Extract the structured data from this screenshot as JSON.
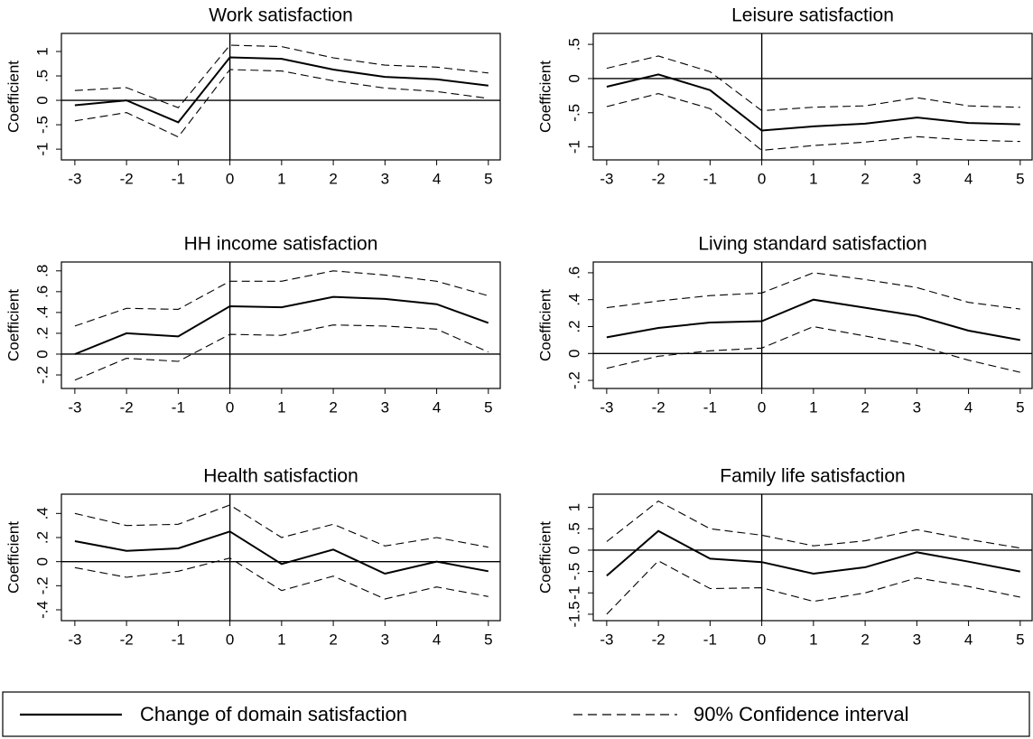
{
  "chart_data": [
    {
      "type": "line",
      "title": "Work satisfaction",
      "ylabel": "Coefficient",
      "x": [
        -3,
        -2,
        -1,
        0,
        1,
        2,
        3,
        4,
        5
      ],
      "xlim": [
        -3.26,
        5.23
      ],
      "xticks": [
        -3,
        -2,
        -1,
        0,
        1,
        2,
        3,
        4,
        5
      ],
      "ylim": [
        -1.22,
        1.37
      ],
      "yticks": [
        -1,
        {
          "value": -0.5,
          "label": "-.5"
        },
        0,
        {
          "value": 0.5,
          "label": ".5"
        },
        1
      ],
      "refline_x": 0,
      "refline_y": 0,
      "estimate": [
        -0.1,
        0.0,
        -0.45,
        0.88,
        0.85,
        0.63,
        0.48,
        0.43,
        0.3
      ],
      "ci_upper": [
        0.2,
        0.26,
        -0.15,
        1.13,
        1.1,
        0.87,
        0.72,
        0.68,
        0.56
      ],
      "ci_lower": [
        -0.42,
        -0.25,
        -0.75,
        0.63,
        0.6,
        0.4,
        0.25,
        0.18,
        0.04
      ]
    },
    {
      "type": "line",
      "title": "Leisure satisfaction",
      "ylabel": "Coefficient",
      "x": [
        -3,
        -2,
        -1,
        0,
        1,
        2,
        3,
        4,
        5
      ],
      "xlim": [
        -3.26,
        5.23
      ],
      "xticks": [
        -3,
        -2,
        -1,
        0,
        1,
        2,
        3,
        4,
        5
      ],
      "ylim": [
        -1.19,
        0.66
      ],
      "yticks": [
        -1,
        {
          "value": -0.5,
          "label": "-.5"
        },
        0,
        {
          "value": 0.5,
          "label": ".5"
        }
      ],
      "refline_x": 0,
      "refline_y": 0,
      "estimate": [
        -0.12,
        0.06,
        -0.17,
        -0.76,
        -0.7,
        -0.66,
        -0.57,
        -0.65,
        -0.67
      ],
      "ci_upper": [
        0.15,
        0.33,
        0.1,
        -0.47,
        -0.42,
        -0.4,
        -0.28,
        -0.4,
        -0.42
      ],
      "ci_lower": [
        -0.41,
        -0.22,
        -0.44,
        -1.05,
        -0.98,
        -0.93,
        -0.85,
        -0.9,
        -0.92
      ]
    },
    {
      "type": "line",
      "title": "HH income satisfaction",
      "ylabel": "Coefficient",
      "x": [
        -3,
        -2,
        -1,
        0,
        1,
        2,
        3,
        4,
        5
      ],
      "xlim": [
        -3.26,
        5.23
      ],
      "xticks": [
        -3,
        -2,
        -1,
        0,
        1,
        2,
        3,
        4,
        5
      ],
      "ylim": [
        -0.33,
        0.885
      ],
      "yticks": [
        {
          "value": -0.2,
          "label": "-.2"
        },
        0,
        {
          "value": 0.2,
          "label": ".2"
        },
        {
          "value": 0.4,
          "label": ".4"
        },
        {
          "value": 0.6,
          "label": ".6"
        },
        {
          "value": 0.8,
          "label": ".8"
        }
      ],
      "refline_x": 0,
      "refline_y": 0,
      "estimate": [
        0.0,
        0.2,
        0.17,
        0.46,
        0.45,
        0.55,
        0.53,
        0.48,
        0.3
      ],
      "ci_upper": [
        0.27,
        0.44,
        0.43,
        0.7,
        0.7,
        0.8,
        0.76,
        0.7,
        0.56
      ],
      "ci_lower": [
        -0.25,
        -0.04,
        -0.07,
        0.19,
        0.18,
        0.28,
        0.27,
        0.24,
        0.02
      ]
    },
    {
      "type": "line",
      "title": "Living standard satisfaction",
      "ylabel": "Coefficient",
      "x": [
        -3,
        -2,
        -1,
        0,
        1,
        2,
        3,
        4,
        5
      ],
      "xlim": [
        -3.26,
        5.23
      ],
      "xticks": [
        -3,
        -2,
        -1,
        0,
        1,
        2,
        3,
        4,
        5
      ],
      "ylim": [
        -0.26,
        0.68
      ],
      "yticks": [
        {
          "value": -0.2,
          "label": "-.2"
        },
        0,
        {
          "value": 0.2,
          "label": ".2"
        },
        {
          "value": 0.4,
          "label": ".4"
        },
        {
          "value": 0.6,
          "label": ".6"
        }
      ],
      "refline_x": 0,
      "refline_y": 0,
      "estimate": [
        0.12,
        0.19,
        0.23,
        0.24,
        0.4,
        0.34,
        0.28,
        0.17,
        0.1
      ],
      "ci_upper": [
        0.34,
        0.39,
        0.43,
        0.45,
        0.6,
        0.55,
        0.49,
        0.38,
        0.33
      ],
      "ci_lower": [
        -0.11,
        -0.02,
        0.02,
        0.04,
        0.2,
        0.13,
        0.06,
        -0.05,
        -0.14
      ]
    },
    {
      "type": "line",
      "title": "Health satisfaction",
      "ylabel": "Coefficient",
      "x": [
        -3,
        -2,
        -1,
        0,
        1,
        2,
        3,
        4,
        5
      ],
      "xlim": [
        -3.26,
        5.23
      ],
      "xticks": [
        -3,
        -2,
        -1,
        0,
        1,
        2,
        3,
        4,
        5
      ],
      "ylim": [
        -0.49,
        0.56
      ],
      "yticks": [
        {
          "value": -0.4,
          "label": "-.4"
        },
        {
          "value": -0.2,
          "label": "-.2"
        },
        0,
        {
          "value": 0.2,
          "label": ".2"
        },
        {
          "value": 0.4,
          "label": ".4"
        }
      ],
      "refline_x": 0,
      "refline_y": 0,
      "estimate": [
        0.17,
        0.09,
        0.11,
        0.25,
        -0.02,
        0.1,
        -0.1,
        0.0,
        -0.08
      ],
      "ci_upper": [
        0.4,
        0.3,
        0.31,
        0.47,
        0.2,
        0.31,
        0.13,
        0.2,
        0.12
      ],
      "ci_lower": [
        -0.05,
        -0.13,
        -0.08,
        0.03,
        -0.24,
        -0.12,
        -0.31,
        -0.21,
        -0.29
      ]
    },
    {
      "type": "line",
      "title": "Family life satisfaction",
      "ylabel": "Coefficient",
      "x": [
        -3,
        -2,
        -1,
        0,
        1,
        2,
        3,
        4,
        5
      ],
      "xlim": [
        -3.26,
        5.23
      ],
      "xticks": [
        -3,
        -2,
        -1,
        0,
        1,
        2,
        3,
        4,
        5
      ],
      "ylim": [
        -1.65,
        1.31
      ],
      "yticks": [
        {
          "value": -1.5,
          "label": "-1.5"
        },
        -1,
        {
          "value": -0.5,
          "label": "-.5"
        },
        0,
        {
          "value": 0.5,
          "label": ".5"
        },
        1
      ],
      "refline_x": 0,
      "refline_y": 0,
      "estimate": [
        -0.6,
        0.45,
        -0.2,
        -0.28,
        -0.55,
        -0.4,
        -0.05,
        -0.27,
        -0.5
      ],
      "ci_upper": [
        0.2,
        1.15,
        0.5,
        0.35,
        0.1,
        0.22,
        0.48,
        0.25,
        0.05
      ],
      "ci_lower": [
        -1.5,
        -0.25,
        -0.9,
        -0.88,
        -1.2,
        -1.0,
        -0.65,
        -0.85,
        -1.1
      ]
    }
  ],
  "legend": [
    "Change of domain satisfaction",
    "90% Confidence interval"
  ]
}
